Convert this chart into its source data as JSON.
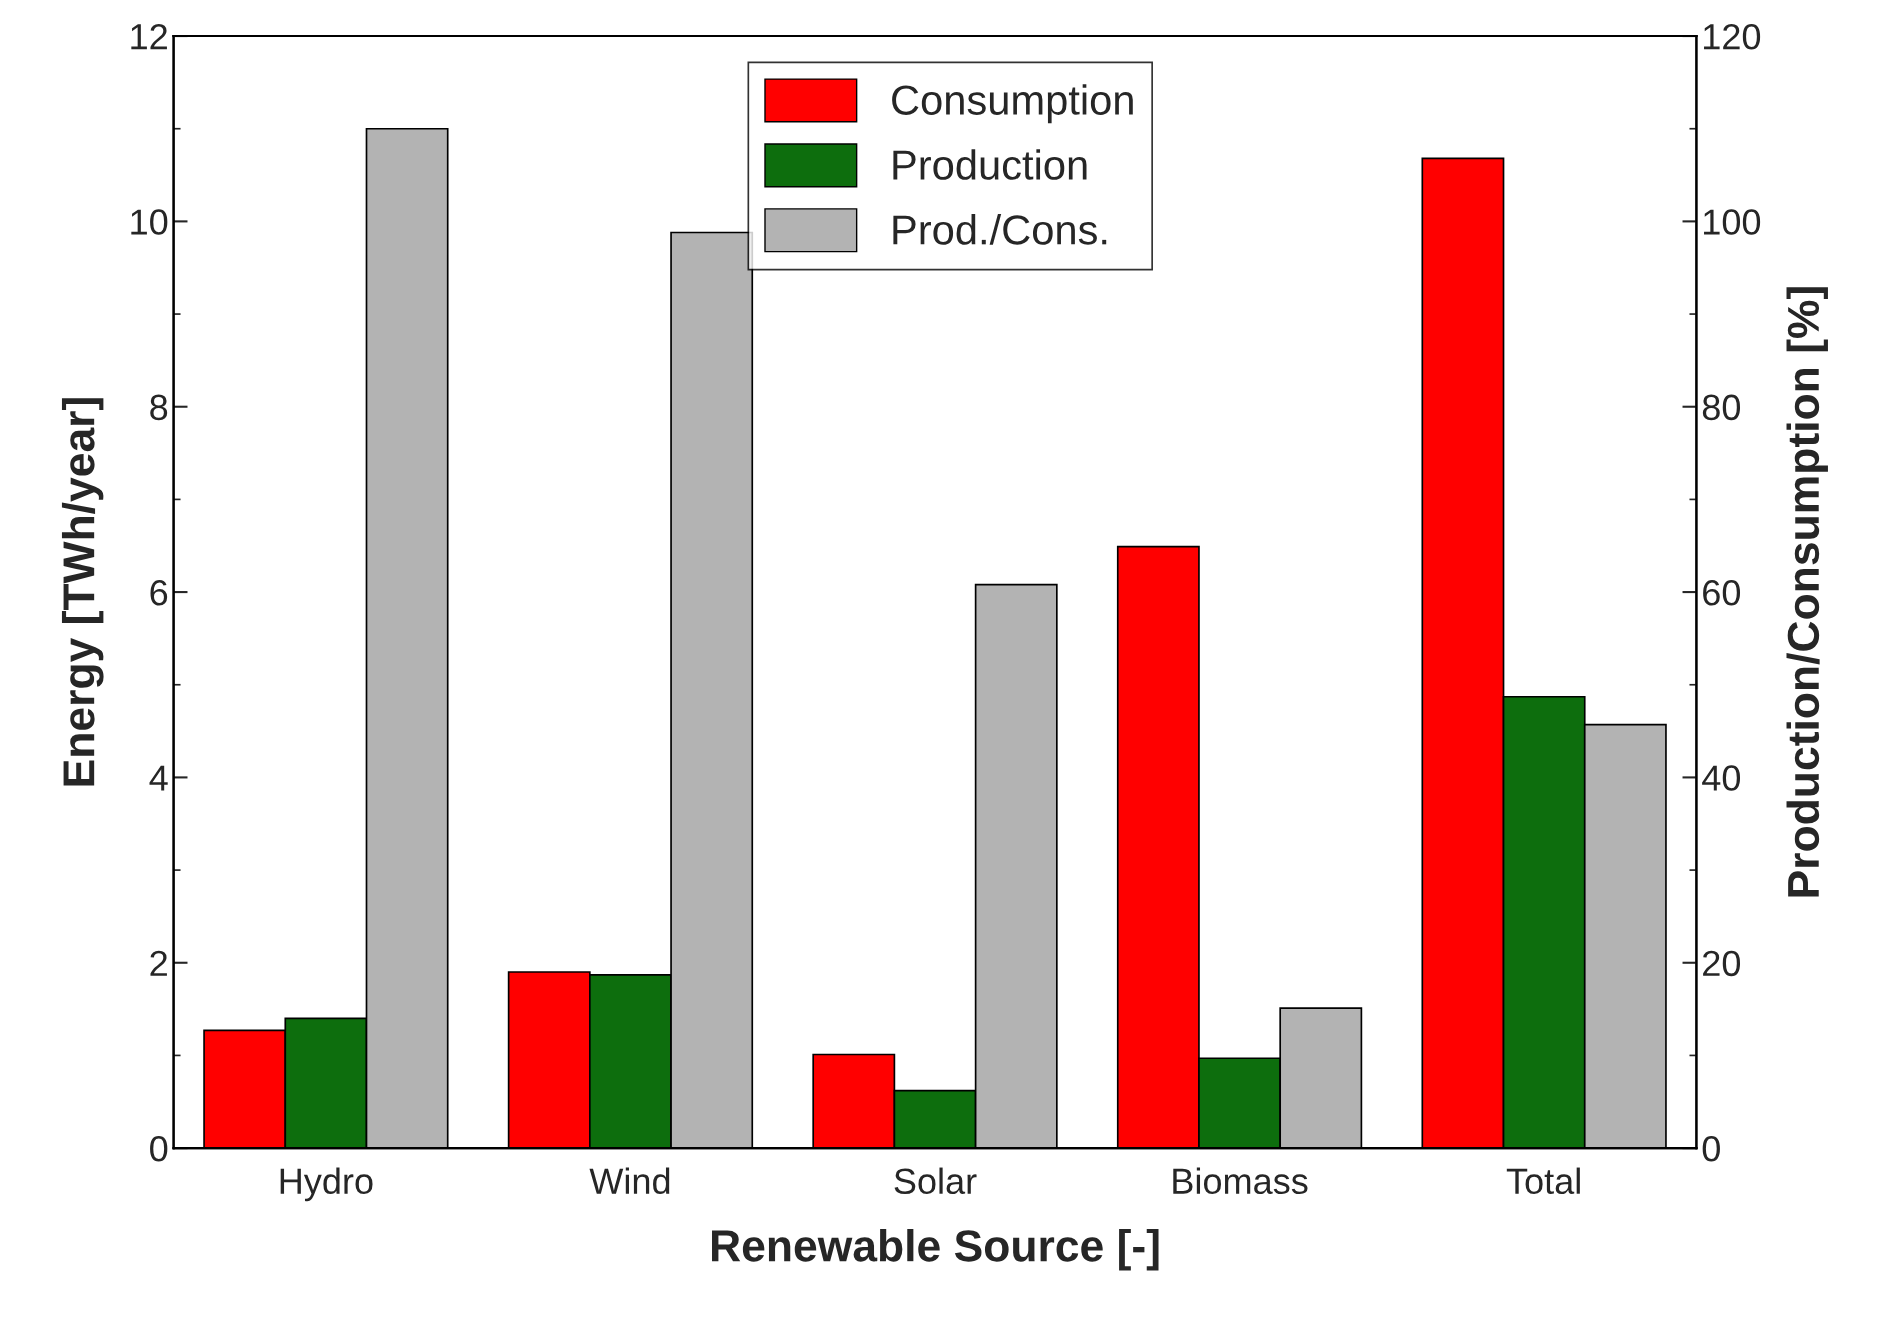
{
  "chart_data": {
    "type": "bar",
    "xlabel": "Renewable Source [-]",
    "ylabel": "Energy [TWh/year]",
    "y2label": "Production/Consumption [%]",
    "categories": [
      "Hydro",
      "Wind",
      "Solar",
      "Biomass",
      "Total"
    ],
    "series": [
      {
        "name": "Consumption",
        "color": "#ff0000",
        "values": [
          1.27,
          1.9,
          1.01,
          6.49,
          10.68
        ]
      },
      {
        "name": "Production",
        "color": "#0d6e0d",
        "values": [
          1.4,
          1.87,
          0.62,
          0.97,
          4.87
        ]
      },
      {
        "name": "Prod./Cons.",
        "color": "#b3b3b3",
        "axis": "y2",
        "values": [
          110,
          98.8,
          60.8,
          15.1,
          45.7
        ]
      }
    ],
    "ylim": [
      0,
      12
    ],
    "yticks": [
      0,
      2,
      4,
      6,
      8,
      10,
      12
    ],
    "y2lim": [
      0,
      120
    ],
    "y2ticks": [
      0,
      20,
      40,
      60,
      80,
      100,
      120
    ],
    "legend": "top",
    "grid": false
  }
}
